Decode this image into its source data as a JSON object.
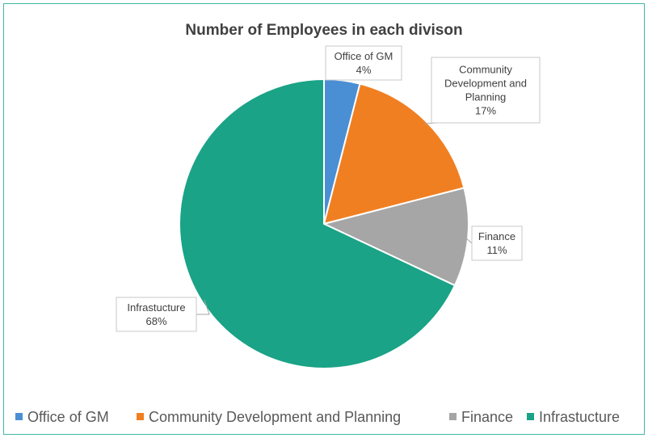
{
  "chart_data": {
    "type": "pie",
    "title": "Number of Employees in each divison",
    "categories": [
      "Office of GM",
      "Community Development and Planning",
      "Finance",
      "Infrastucture"
    ],
    "values": [
      4,
      17,
      11,
      68
    ],
    "data_labels": [
      {
        "name_lines": [
          "Office of GM"
        ],
        "pct": "4%"
      },
      {
        "name_lines": [
          "Community",
          "Development and",
          "Planning"
        ],
        "pct": "17%"
      },
      {
        "name_lines": [
          "Finance"
        ],
        "pct": "11%"
      },
      {
        "name_lines": [
          "Infrastucture"
        ],
        "pct": "68%"
      }
    ],
    "colors": [
      "#4a8fd4",
      "#f07f22",
      "#a6a6a6",
      "#1aa386"
    ],
    "legend": {
      "position": "bottom",
      "items": [
        "Office of GM",
        "Community Development and Planning",
        "Finance",
        "Infrastucture"
      ]
    },
    "start_angle": "12 o'clock",
    "direction": "clockwise"
  }
}
